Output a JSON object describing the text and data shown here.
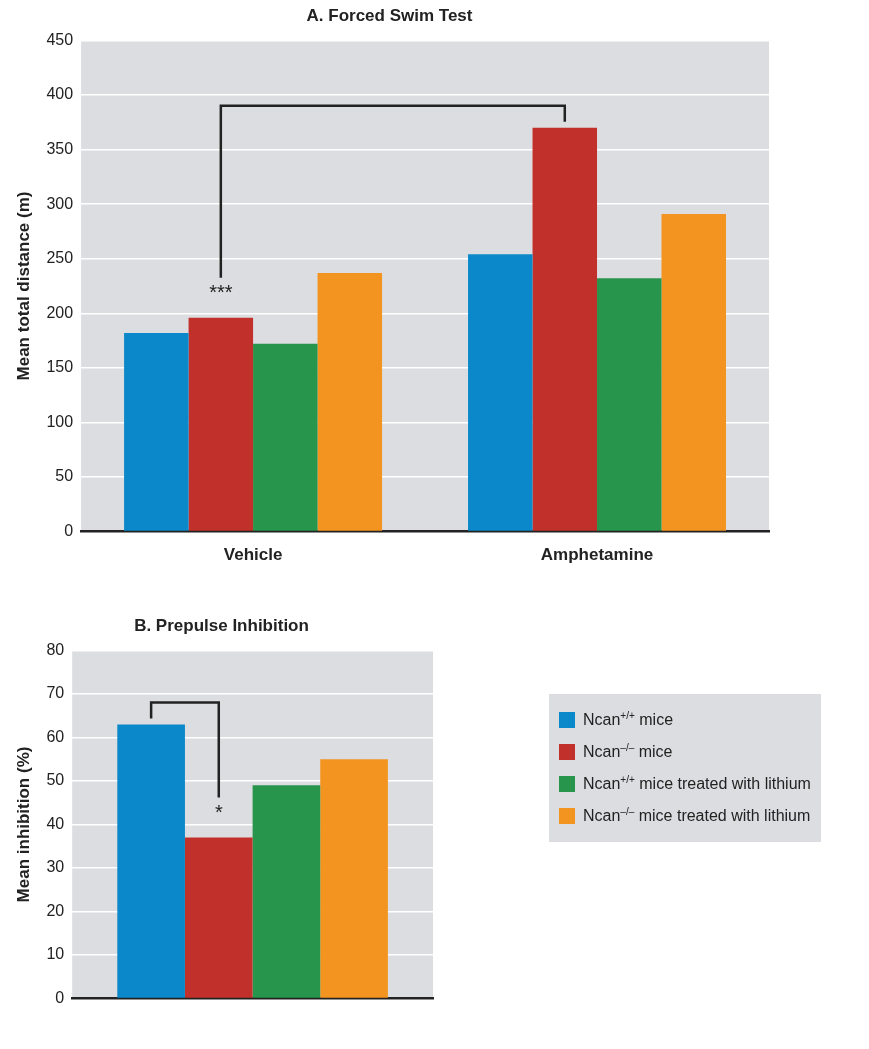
{
  "chart_data": [
    {
      "type": "bar",
      "title": "A. Forced Swim Test",
      "ylabel": "Mean total distance (m)",
      "categories": [
        "Vehicle",
        "Amphetamine"
      ],
      "series": [
        {
          "color": "#0a88c9",
          "values": [
            182,
            254
          ]
        },
        {
          "color": "#c1302a",
          "values": [
            196,
            370
          ]
        },
        {
          "color": "#27954b",
          "values": [
            172,
            232
          ]
        },
        {
          "color": "#f39320",
          "values": [
            237,
            291
          ]
        }
      ],
      "ylim": [
        0,
        450
      ],
      "yticks": [
        0,
        50,
        100,
        150,
        200,
        250,
        300,
        350,
        400,
        450
      ],
      "grid": "y",
      "annotations": [
        "***"
      ]
    },
    {
      "type": "bar",
      "title": "B. Prepulse Inhibition",
      "ylabel": "Mean inhibition (%)",
      "categories": [
        null
      ],
      "series": [
        {
          "name": "Ncan$^{+/+}$ mice",
          "color": "#0a88c9",
          "values": [
            63
          ]
        },
        {
          "name": "Ncan$^{–/–}$ mice",
          "color": "#c1302a",
          "values": [
            37
          ]
        },
        {
          "name": "Ncan$^{+/+}$ mice treated with lithium",
          "color": "#27954b",
          "values": [
            49
          ]
        },
        {
          "name": "Ncan$^{–/–}$ mice treated with lithium",
          "color": "#f39320",
          "values": [
            55
          ]
        }
      ],
      "ylim": [
        0,
        80
      ],
      "yticks": [
        0,
        10,
        20,
        30,
        40,
        50,
        60,
        70,
        80
      ],
      "grid": "y",
      "legend": "right",
      "annotations": [
        "*"
      ]
    }
  ]
}
